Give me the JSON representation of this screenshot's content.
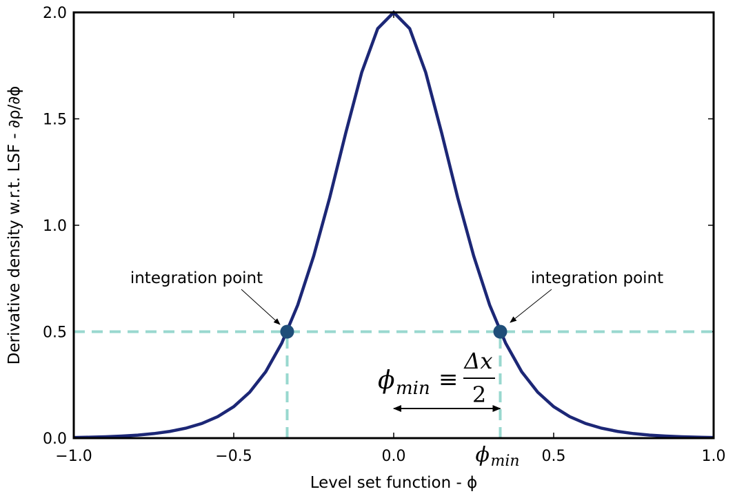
{
  "chart_data": {
    "type": "line",
    "xlabel": "Level set function - ϕ",
    "ylabel": "Derivative density w.r.t. LSF - ∂ρ/∂ϕ",
    "xlim": [
      -1,
      1
    ],
    "ylim": [
      0,
      2
    ],
    "xticks": [
      {
        "value": -1,
        "label": "−1.0"
      },
      {
        "value": -0.5,
        "label": "−0.5"
      },
      {
        "value": 0,
        "label": "0.0"
      },
      0.5,
      {
        "value": 1,
        "label": "1.0"
      }
    ],
    "yticks": [
      {
        "value": 0,
        "label": "0.0"
      },
      0.5,
      {
        "value": 1,
        "label": "1.0"
      },
      1.5,
      {
        "value": 2,
        "label": "2.0"
      }
    ],
    "x": [
      -1,
      -0.95,
      -0.9,
      -0.85,
      -0.8,
      -0.75,
      -0.7,
      -0.65,
      -0.6,
      -0.55,
      -0.5,
      -0.45,
      -0.4,
      -0.35,
      -0.3,
      -0.25,
      -0.2,
      -0.15,
      -0.1,
      -0.05,
      0,
      0.05,
      0.1,
      0.15,
      0.2,
      0.25,
      0.3,
      0.35,
      0.4,
      0.45,
      0.5,
      0.55,
      0.6,
      0.65,
      0.7,
      0.75,
      0.8,
      0.85,
      0.9,
      0.95,
      1
    ],
    "series": [
      {
        "color": "#1c2776",
        "values": [
          0.003,
          0.0044,
          0.0065,
          0.0097,
          0.0143,
          0.0213,
          0.0315,
          0.0466,
          0.0687,
          0.101,
          0.148,
          0.216,
          0.312,
          0.446,
          0.625,
          0.856,
          1.13,
          1.433,
          1.718,
          1.924,
          2,
          1.924,
          1.718,
          1.433,
          1.13,
          0.856,
          0.625,
          0.446,
          0.312,
          0.216,
          0.148,
          0.101,
          0.0687,
          0.0466,
          0.0315,
          0.0213,
          0.0143,
          0.0097,
          0.0065,
          0.0044,
          0.003
        ]
      }
    ],
    "points": {
      "color": "#1f4e79",
      "x": [
        -0.333,
        0.333
      ],
      "y": [
        0.5,
        0.5
      ]
    },
    "reference": {
      "color": "#99d8cf",
      "y": 0.5,
      "x": [
        -0.333,
        0.333
      ]
    },
    "span": [
      0,
      0.333
    ],
    "annotations": [
      "integration point",
      "integration point"
    ],
    "formula": {
      "symbol": "ϕ",
      "subscript": "min",
      "relation": "≡",
      "numerator": "Δx",
      "denominator": "2"
    },
    "span_tick": {
      "value": 0.333,
      "symbol": "ϕ",
      "subscript": "min"
    }
  }
}
